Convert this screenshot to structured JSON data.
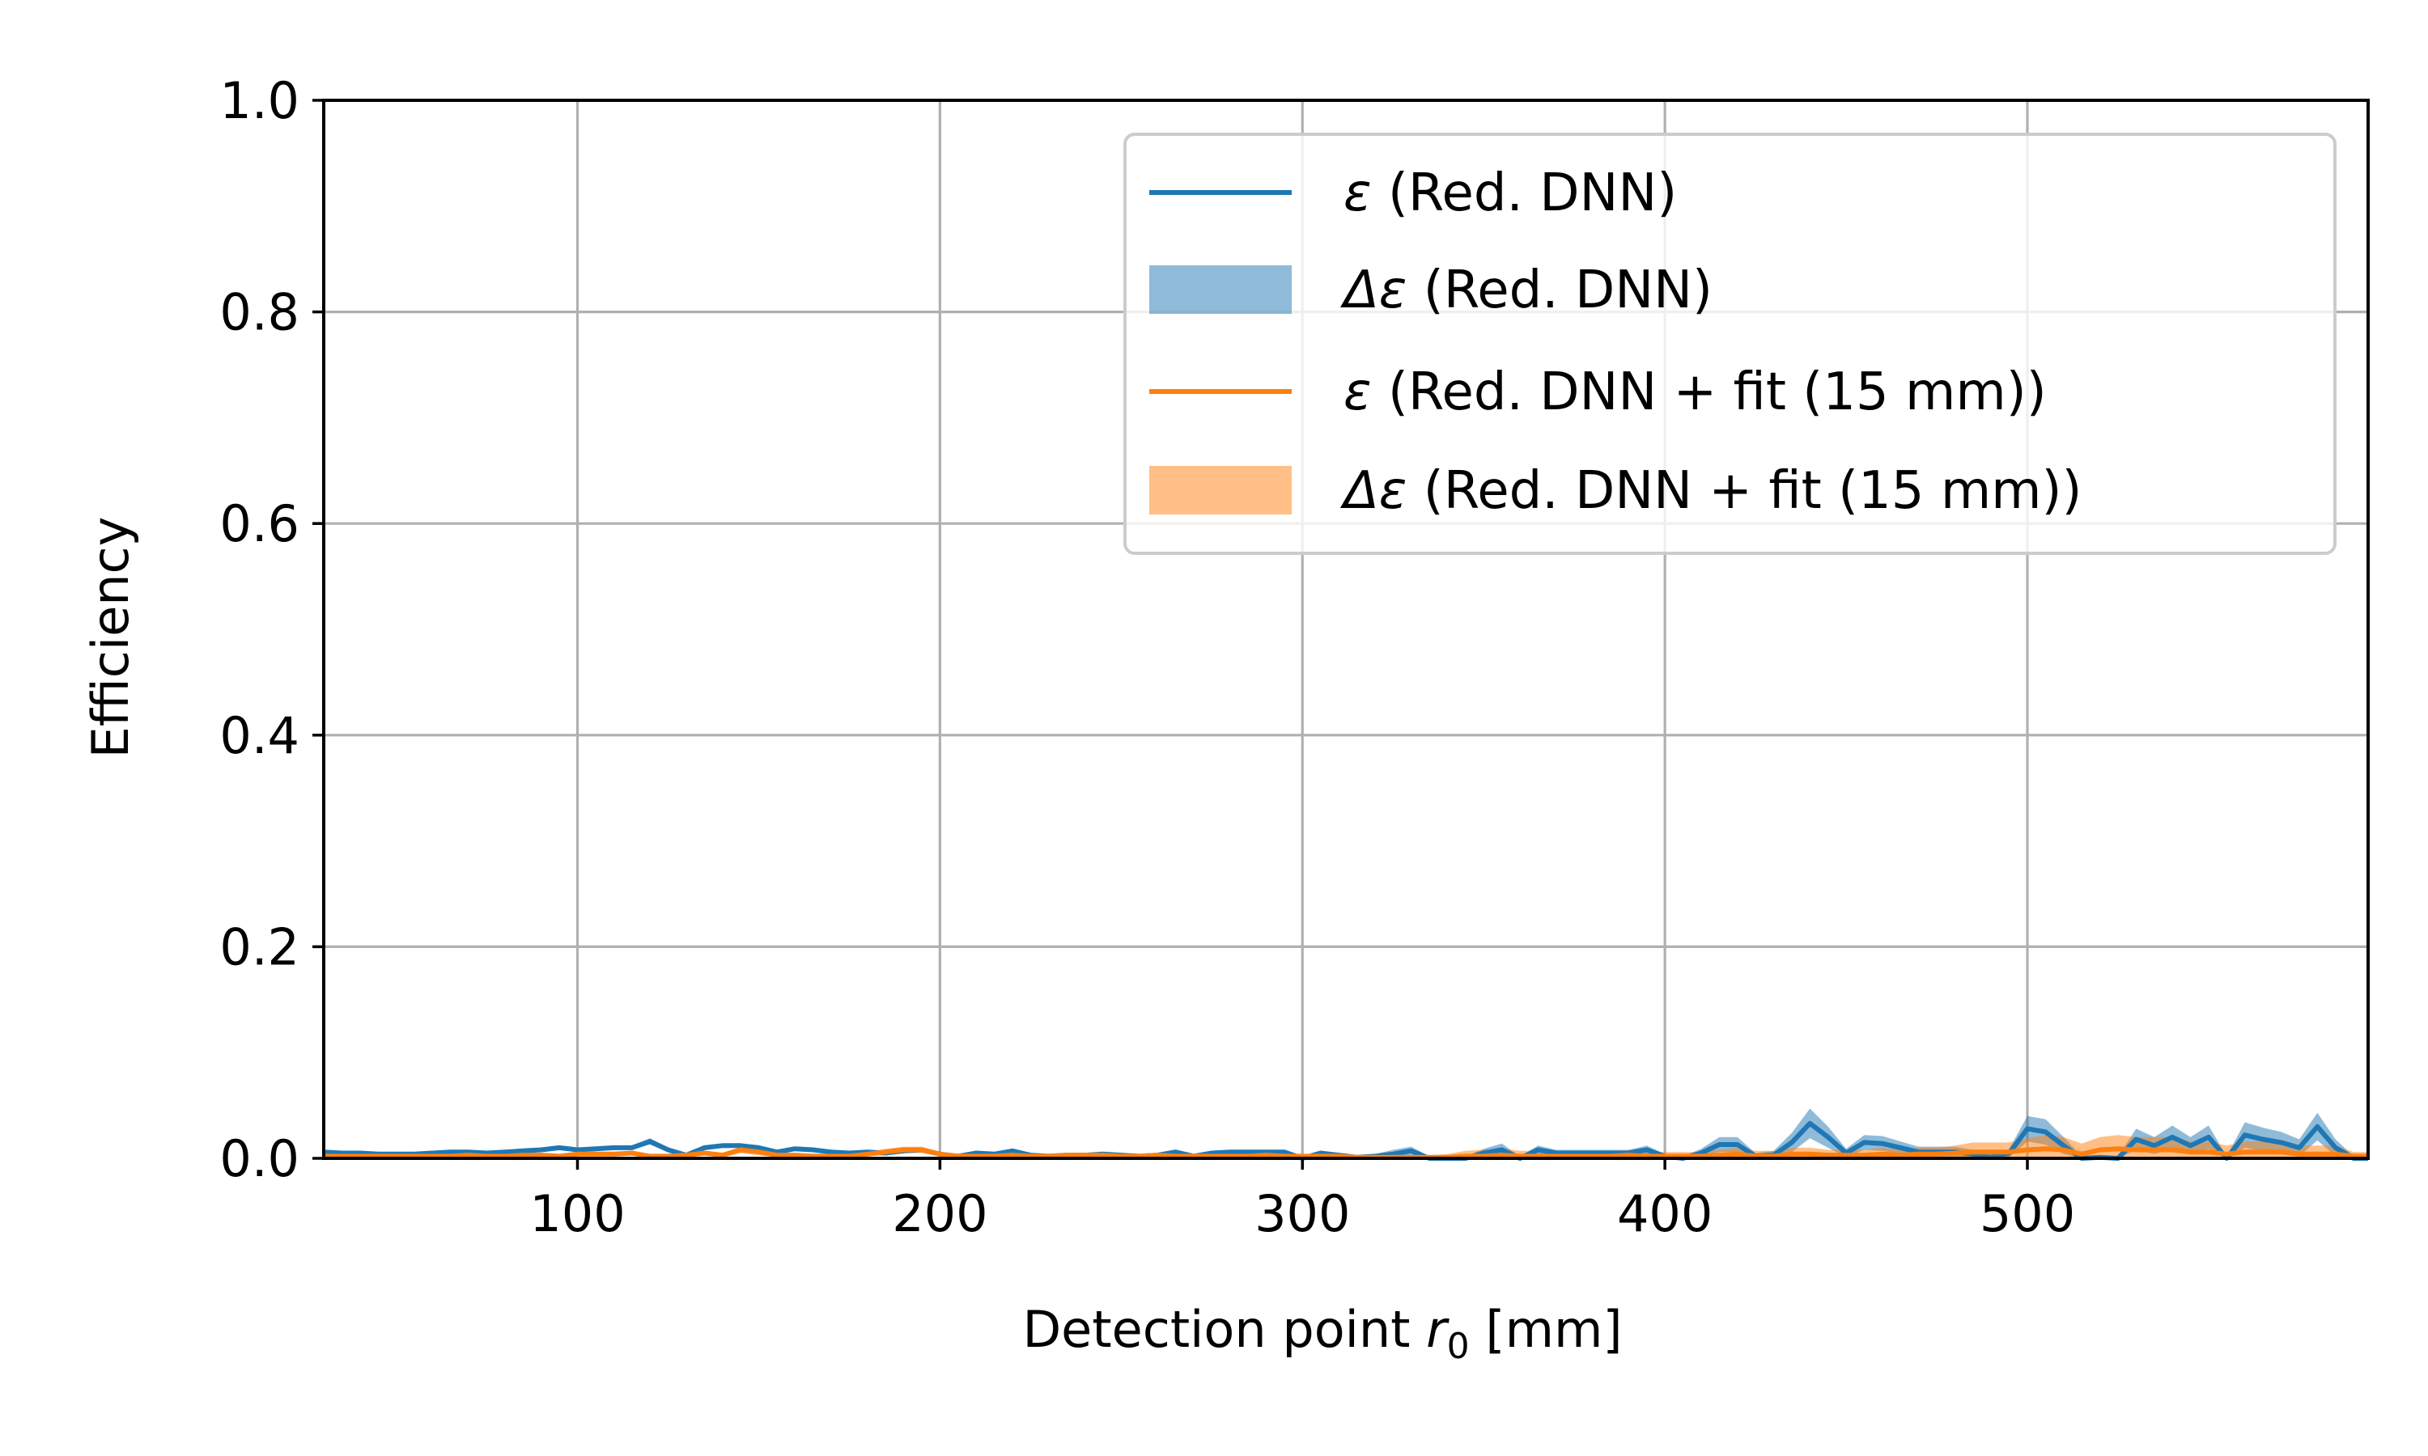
{
  "chart_data": {
    "type": "line",
    "xlabel_prefix": "Detection point ",
    "xlabel_var": "r",
    "xlabel_sub": "0",
    "xlabel_suffix": " [mm]",
    "ylabel": "Efficiency",
    "xlim": [
      30,
      594
    ],
    "ylim": [
      0.0,
      1.0
    ],
    "xticks": [
      100,
      200,
      300,
      400,
      500
    ],
    "xtick_labels": [
      "100",
      "200",
      "300",
      "400",
      "500"
    ],
    "yticks": [
      0.0,
      0.2,
      0.4,
      0.6,
      0.8,
      1.0
    ],
    "ytick_labels": [
      "0.0",
      "0.2",
      "0.4",
      "0.6",
      "0.8",
      "1.0"
    ],
    "grid": true,
    "legend_position": "upper right",
    "legend": [
      {
        "symbol": "ε",
        "text": " (Red. DNN)",
        "kind": "line",
        "color": "#1f77b4"
      },
      {
        "symbol": "Δε",
        "text": " (Red. DNN)",
        "kind": "band",
        "color": "#1f77b4"
      },
      {
        "symbol": "ε",
        "text": " (Red. DNN + fit (15 mm))",
        "kind": "line",
        "color": "#ff7f0e"
      },
      {
        "symbol": "Δε",
        "text": " (Red. DNN + fit (15 mm))",
        "kind": "band",
        "color": "#ff7f0e"
      }
    ],
    "x": [
      30,
      35,
      40,
      45,
      50,
      55,
      60,
      65,
      70,
      75,
      80,
      85,
      90,
      95,
      100,
      105,
      110,
      115,
      120,
      125,
      130,
      135,
      140,
      145,
      150,
      155,
      160,
      165,
      170,
      175,
      180,
      185,
      190,
      195,
      200,
      205,
      210,
      215,
      220,
      225,
      230,
      235,
      240,
      245,
      250,
      255,
      260,
      265,
      270,
      275,
      280,
      285,
      290,
      295,
      300,
      305,
      310,
      315,
      320,
      325,
      330,
      335,
      340,
      345,
      350,
      355,
      360,
      365,
      370,
      375,
      380,
      385,
      390,
      395,
      400,
      405,
      410,
      415,
      420,
      425,
      430,
      435,
      440,
      445,
      450,
      455,
      460,
      465,
      470,
      475,
      480,
      485,
      490,
      495,
      500,
      505,
      510,
      515,
      520,
      525,
      530,
      535,
      540,
      545,
      550,
      555,
      560,
      565,
      570,
      575,
      580,
      585,
      590,
      594
    ],
    "series": [
      {
        "name": "ε (Red. DNN)",
        "color": "#1f77b4",
        "values": [
          0.006,
          0.005,
          0.005,
          0.004,
          0.004,
          0.004,
          0.005,
          0.006,
          0.006,
          0.005,
          0.006,
          0.007,
          0.008,
          0.01,
          0.008,
          0.009,
          0.01,
          0.01,
          0.016,
          0.008,
          0.003,
          0.01,
          0.012,
          0.012,
          0.01,
          0.006,
          0.009,
          0.008,
          0.006,
          0.005,
          0.006,
          0.005,
          0.007,
          0.008,
          0.004,
          0.002,
          0.005,
          0.004,
          0.007,
          0.003,
          0.002,
          0.003,
          0.003,
          0.004,
          0.003,
          0.002,
          0.003,
          0.006,
          0.002,
          0.005,
          0.006,
          0.006,
          0.006,
          0.006,
          0.0,
          0.005,
          0.003,
          0.001,
          0.002,
          0.004,
          0.007,
          0.0,
          0.0,
          0.0,
          0.005,
          0.008,
          0.0,
          0.008,
          0.005,
          0.005,
          0.005,
          0.005,
          0.005,
          0.008,
          0.002,
          0.0,
          0.005,
          0.013,
          0.013,
          0.002,
          0.003,
          0.015,
          0.033,
          0.02,
          0.005,
          0.015,
          0.014,
          0.01,
          0.006,
          0.006,
          0.006,
          0.004,
          0.001,
          0.005,
          0.028,
          0.025,
          0.012,
          0.0,
          0.001,
          0.0,
          0.018,
          0.012,
          0.02,
          0.012,
          0.02,
          0.0,
          0.022,
          0.018,
          0.015,
          0.01,
          0.03,
          0.01,
          0.0,
          0.0
        ],
        "errors": [
          0.002,
          0.002,
          0.002,
          0.002,
          0.002,
          0.002,
          0.002,
          0.002,
          0.002,
          0.002,
          0.002,
          0.002,
          0.002,
          0.002,
          0.002,
          0.002,
          0.002,
          0.002,
          0.003,
          0.002,
          0.002,
          0.002,
          0.002,
          0.002,
          0.002,
          0.002,
          0.002,
          0.002,
          0.002,
          0.002,
          0.002,
          0.002,
          0.002,
          0.002,
          0.002,
          0.002,
          0.002,
          0.002,
          0.002,
          0.002,
          0.002,
          0.002,
          0.002,
          0.002,
          0.002,
          0.002,
          0.002,
          0.002,
          0.002,
          0.002,
          0.002,
          0.002,
          0.002,
          0.002,
          0.002,
          0.002,
          0.002,
          0.002,
          0.002,
          0.004,
          0.004,
          0.002,
          0.002,
          0.002,
          0.004,
          0.006,
          0.002,
          0.004,
          0.003,
          0.003,
          0.003,
          0.003,
          0.003,
          0.004,
          0.002,
          0.002,
          0.004,
          0.007,
          0.007,
          0.003,
          0.004,
          0.009,
          0.014,
          0.01,
          0.004,
          0.007,
          0.007,
          0.006,
          0.005,
          0.005,
          0.005,
          0.004,
          0.002,
          0.004,
          0.012,
          0.012,
          0.008,
          0.002,
          0.002,
          0.002,
          0.01,
          0.008,
          0.011,
          0.008,
          0.011,
          0.002,
          0.012,
          0.011,
          0.01,
          0.008,
          0.013,
          0.008,
          0.002,
          0.002
        ]
      },
      {
        "name": "ε (Red. DNN + fit (15 mm))",
        "color": "#ff7f0e",
        "values": [
          0.002,
          0.002,
          0.002,
          0.002,
          0.002,
          0.002,
          0.002,
          0.002,
          0.003,
          0.002,
          0.002,
          0.003,
          0.003,
          0.002,
          0.004,
          0.004,
          0.004,
          0.005,
          0.002,
          0.002,
          0.003,
          0.005,
          0.003,
          0.008,
          0.006,
          0.003,
          0.003,
          0.002,
          0.002,
          0.002,
          0.004,
          0.006,
          0.008,
          0.008,
          0.004,
          0.002,
          0.002,
          0.002,
          0.003,
          0.002,
          0.002,
          0.003,
          0.003,
          0.003,
          0.002,
          0.002,
          0.003,
          0.002,
          0.002,
          0.002,
          0.002,
          0.002,
          0.003,
          0.002,
          0.002,
          0.002,
          0.002,
          0.001,
          0.001,
          0.001,
          0.001,
          0.001,
          0.001,
          0.002,
          0.002,
          0.003,
          0.002,
          0.002,
          0.002,
          0.002,
          0.002,
          0.002,
          0.003,
          0.002,
          0.002,
          0.002,
          0.002,
          0.003,
          0.004,
          0.002,
          0.002,
          0.004,
          0.004,
          0.003,
          0.003,
          0.003,
          0.004,
          0.003,
          0.004,
          0.004,
          0.005,
          0.006,
          0.006,
          0.006,
          0.008,
          0.009,
          0.008,
          0.004,
          0.008,
          0.009,
          0.008,
          0.008,
          0.008,
          0.006,
          0.006,
          0.004,
          0.006,
          0.006,
          0.006,
          0.004,
          0.004,
          0.004,
          0.002,
          0.002
        ],
        "errors": [
          0.002,
          0.002,
          0.002,
          0.002,
          0.002,
          0.002,
          0.002,
          0.002,
          0.002,
          0.002,
          0.002,
          0.002,
          0.002,
          0.002,
          0.002,
          0.002,
          0.002,
          0.002,
          0.002,
          0.002,
          0.002,
          0.002,
          0.002,
          0.003,
          0.003,
          0.002,
          0.002,
          0.002,
          0.002,
          0.002,
          0.002,
          0.003,
          0.003,
          0.003,
          0.002,
          0.002,
          0.002,
          0.002,
          0.002,
          0.002,
          0.002,
          0.002,
          0.002,
          0.002,
          0.002,
          0.002,
          0.002,
          0.002,
          0.002,
          0.002,
          0.002,
          0.002,
          0.002,
          0.002,
          0.002,
          0.002,
          0.002,
          0.002,
          0.002,
          0.002,
          0.002,
          0.002,
          0.003,
          0.005,
          0.006,
          0.006,
          0.005,
          0.005,
          0.004,
          0.004,
          0.004,
          0.004,
          0.005,
          0.004,
          0.004,
          0.004,
          0.004,
          0.005,
          0.006,
          0.005,
          0.005,
          0.006,
          0.006,
          0.005,
          0.005,
          0.005,
          0.006,
          0.005,
          0.006,
          0.006,
          0.007,
          0.009,
          0.009,
          0.009,
          0.011,
          0.013,
          0.012,
          0.01,
          0.012,
          0.013,
          0.012,
          0.012,
          0.012,
          0.01,
          0.01,
          0.008,
          0.01,
          0.01,
          0.01,
          0.008,
          0.008,
          0.008,
          0.004,
          0.004
        ]
      }
    ]
  }
}
